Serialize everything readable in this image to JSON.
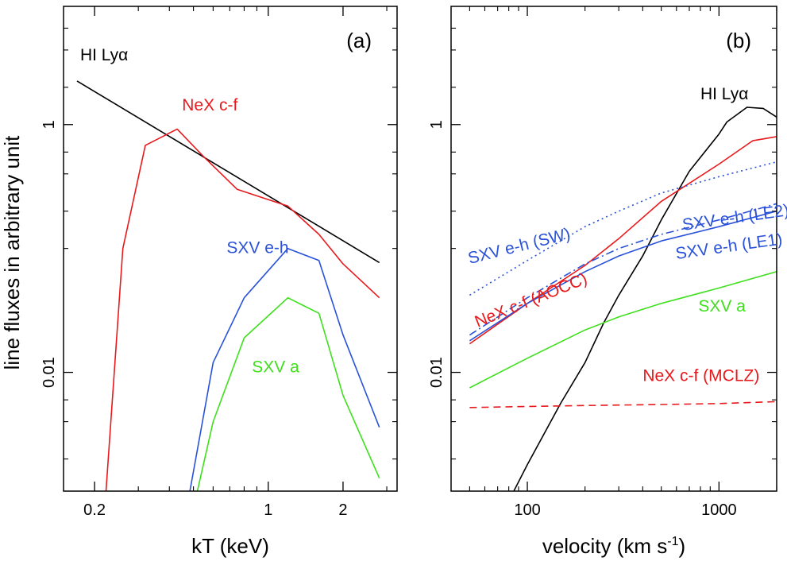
{
  "ylabel": "line fluxes in arbitrary unit",
  "chart_data": [
    {
      "type": "line",
      "panel_label": "(a)",
      "xlabel": "kT (keV)",
      "x_scale": "log",
      "y_scale": "log",
      "xlim": [
        0.15,
        3.3
      ],
      "ylim": [
        0.0011,
        9
      ],
      "x_ticks": [
        {
          "value": 0.2,
          "label": "0.2"
        },
        {
          "value": 1,
          "label": "1"
        },
        {
          "value": 2,
          "label": "2"
        }
      ],
      "x_minor_ticks": [
        0.3,
        0.4,
        0.5,
        0.6,
        0.7,
        0.8,
        0.9,
        3
      ],
      "y_ticks": [
        {
          "value": 0.01,
          "label": "0.01"
        },
        {
          "value": 1,
          "label": "1"
        }
      ],
      "y_minor_ticks": [
        0.002,
        0.004,
        0.006,
        0.1,
        0.2,
        0.4,
        0.6,
        2,
        4,
        6
      ],
      "series": [
        {
          "name": "HI Lyα",
          "color": "#000000",
          "dash": "solid",
          "x": [
            0.17,
            2.8
          ],
          "y": [
            2.25,
            0.077
          ]
        },
        {
          "name": "NeX c-f",
          "color": "#e8191c",
          "dash": "solid",
          "x": [
            0.22,
            0.26,
            0.32,
            0.43,
            0.55,
            0.75,
            1.2,
            1.6,
            2.0,
            2.8
          ],
          "y": [
            0.0008,
            0.1,
            0.68,
            0.92,
            0.55,
            0.3,
            0.22,
            0.13,
            0.075,
            0.04
          ]
        },
        {
          "name": "SXV e-h",
          "color": "#2a52d9",
          "dash": "solid",
          "x": [
            0.47,
            0.6,
            0.8,
            1.2,
            1.6,
            2.0,
            2.8
          ],
          "y": [
            0.0008,
            0.012,
            0.04,
            0.1,
            0.08,
            0.02,
            0.0036
          ]
        },
        {
          "name": "SXV a",
          "color": "#3ee01c",
          "dash": "solid",
          "x": [
            0.5,
            0.6,
            0.8,
            1.2,
            1.6,
            2.0,
            2.8
          ],
          "y": [
            0.0008,
            0.004,
            0.019,
            0.04,
            0.03,
            0.0065,
            0.0014
          ]
        }
      ],
      "annotations": [
        {
          "text": "HI Lyα",
          "color": "#000000",
          "x": 0.175,
          "y": 3.3
        },
        {
          "text": "NeX c-f",
          "color": "#e8191c",
          "x": 0.45,
          "y": 1.3
        },
        {
          "text": "SXV e-h",
          "color": "#2a52d9",
          "x": 0.68,
          "y": 0.092
        },
        {
          "text": "SXV a",
          "color": "#3ee01c",
          "x": 0.86,
          "y": 0.01
        }
      ]
    },
    {
      "type": "line",
      "panel_label": "(b)",
      "xlabel": "velocity (km s",
      "xlabel_superscript": "-1",
      "xlabel_suffix": ")",
      "x_scale": "log",
      "y_scale": "log",
      "xlim": [
        40,
        2000
      ],
      "ylim": [
        0.0011,
        9
      ],
      "x_ticks": [
        {
          "value": 100,
          "label": "100"
        },
        {
          "value": 1000,
          "label": "1000"
        }
      ],
      "x_minor_ticks": [
        50,
        60,
        70,
        80,
        90,
        200,
        300,
        400,
        500,
        600,
        700,
        800,
        900,
        2000
      ],
      "y_ticks": [
        {
          "value": 0.01,
          "label": "0.01"
        },
        {
          "value": 1,
          "label": "1"
        }
      ],
      "y_minor_ticks": [
        0.002,
        0.004,
        0.006,
        0.1,
        0.2,
        0.4,
        0.6,
        2,
        4,
        6
      ],
      "series": [
        {
          "name": "HI Lyα",
          "color": "#000000",
          "dash": "solid",
          "x": [
            85,
            100,
            150,
            200,
            250,
            300,
            400,
            500,
            700,
            1000,
            1100,
            1400,
            1700,
            2000
          ],
          "y": [
            0.0011,
            0.0018,
            0.0057,
            0.012,
            0.025,
            0.042,
            0.087,
            0.17,
            0.42,
            0.84,
            1.05,
            1.38,
            1.35,
            1.15
          ]
        },
        {
          "name": "NeX c-f (AOCC)",
          "color": "#e8191c",
          "dash": "solid",
          "x": [
            50,
            100,
            200,
            300,
            500,
            1000,
            1500,
            2000
          ],
          "y": [
            0.017,
            0.036,
            0.073,
            0.12,
            0.24,
            0.48,
            0.74,
            0.8
          ]
        },
        {
          "name": "SXV e-h (SW)",
          "color": "#2a52d9",
          "dash": "dotted",
          "x": [
            50,
            100,
            200,
            300,
            500,
            1000,
            2000
          ],
          "y": [
            0.042,
            0.08,
            0.15,
            0.2,
            0.28,
            0.38,
            0.5
          ]
        },
        {
          "name": "SXV e-h (LE2)",
          "color": "#2a52d9",
          "dash": "dashdot",
          "x": [
            50,
            100,
            200,
            300,
            500,
            1000,
            2000
          ],
          "y": [
            0.02,
            0.04,
            0.075,
            0.1,
            0.13,
            0.17,
            0.23
          ]
        },
        {
          "name": "SXV e-h (LE1)",
          "color": "#2a52d9",
          "dash": "solid",
          "x": [
            50,
            100,
            200,
            300,
            500,
            1000,
            2000
          ],
          "y": [
            0.018,
            0.036,
            0.065,
            0.087,
            0.115,
            0.15,
            0.2
          ]
        },
        {
          "name": "SXV a",
          "color": "#3ee01c",
          "dash": "solid",
          "x": [
            50,
            100,
            200,
            300,
            500,
            1000,
            2000
          ],
          "y": [
            0.0075,
            0.013,
            0.022,
            0.028,
            0.036,
            0.048,
            0.065
          ]
        },
        {
          "name": "NeX c-f (MCLZ)",
          "color": "#e8191c",
          "dash": "dashed",
          "x": [
            50,
            100,
            200,
            500,
            1000,
            2000
          ],
          "y": [
            0.0052,
            0.0053,
            0.0054,
            0.0055,
            0.0056,
            0.0058
          ]
        }
      ],
      "annotations": [
        {
          "text": "HI Lyα",
          "color": "#000000",
          "x": 800,
          "y": 1.6
        },
        {
          "text": "SXV e-h (SW)",
          "color": "#2a52d9",
          "x": 50,
          "y": 0.075,
          "rotate": -14
        },
        {
          "text": "NeX c-f (AOCC)",
          "color": "#e8191c",
          "x": 55,
          "y": 0.023,
          "rotate": -22
        },
        {
          "text": "SXV e-h (LE2)",
          "color": "#2a52d9",
          "x": 650,
          "y": 0.14,
          "rotate": -8
        },
        {
          "text": "SXV e-h (LE1)",
          "color": "#2a52d9",
          "x": 600,
          "y": 0.082,
          "rotate": -8
        },
        {
          "text": "SXV a",
          "color": "#3ee01c",
          "x": 780,
          "y": 0.031
        },
        {
          "text": "NeX c-f (MCLZ)",
          "color": "#e8191c",
          "x": 400,
          "y": 0.0085
        }
      ]
    }
  ]
}
